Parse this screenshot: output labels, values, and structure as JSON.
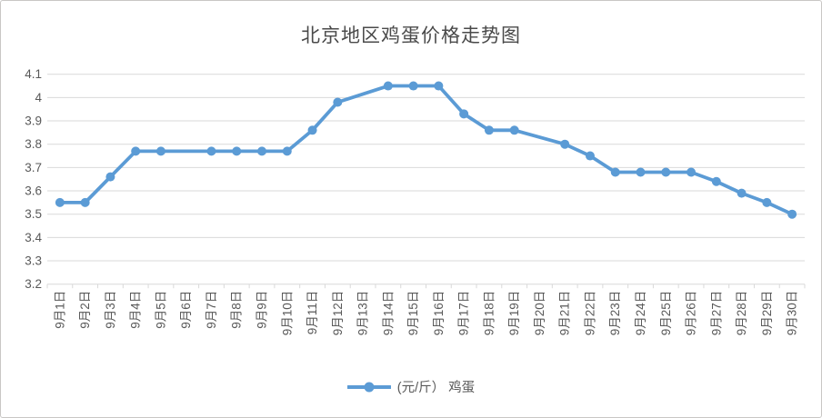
{
  "chart": {
    "background": "#FFFFFF",
    "border_color": "#C9C7C5",
    "title_color": "#4A4A4A",
    "line_color": "#5B9BD5",
    "marker_color": "#5B9BD5",
    "gridline_color": "#D9D9D9",
    "axis_text_color": "#595959"
  },
  "chart_data": {
    "type": "line",
    "title": "北京地区鸡蛋价格走势图",
    "categories": [
      "9月1日",
      "9月2日",
      "9月3日",
      "9月4日",
      "9月5日",
      "9月6日",
      "9月7日",
      "9月8日",
      "9月9日",
      "9月10日",
      "9月11日",
      "9月12日",
      "9月13日",
      "9月14日",
      "9月15日",
      "9月16日",
      "9月17日",
      "9月18日",
      "9月19日",
      "9月20日",
      "9月21日",
      "9月22日",
      "9月23日",
      "9月24日",
      "9月25日",
      "9月26日",
      "9月27日",
      "9月28日",
      "9月29日",
      "9月30日"
    ],
    "series": [
      {
        "name": "(元/斤） 鸡蛋",
        "values": [
          3.55,
          3.55,
          3.66,
          3.77,
          3.77,
          null,
          3.77,
          3.77,
          3.77,
          3.77,
          3.86,
          3.98,
          null,
          4.05,
          4.05,
          4.05,
          3.93,
          3.86,
          3.86,
          null,
          3.8,
          3.75,
          3.68,
          3.68,
          3.68,
          3.68,
          3.64,
          3.59,
          3.55,
          3.5
        ]
      }
    ],
    "ylim": [
      3.2,
      4.1
    ],
    "ytick_step": 0.1,
    "ytick_labels": [
      "4.1",
      "4",
      "3.9",
      "3.8",
      "3.7",
      "3.6",
      "3.5",
      "3.4",
      "3.3",
      "3.2"
    ],
    "xlabel": "",
    "ylabel": "",
    "grid": true,
    "legend_position": "bottom",
    "notes": "markers missing (empty cells, line connected) on 9月6日, 9月13日, 9月20日"
  }
}
